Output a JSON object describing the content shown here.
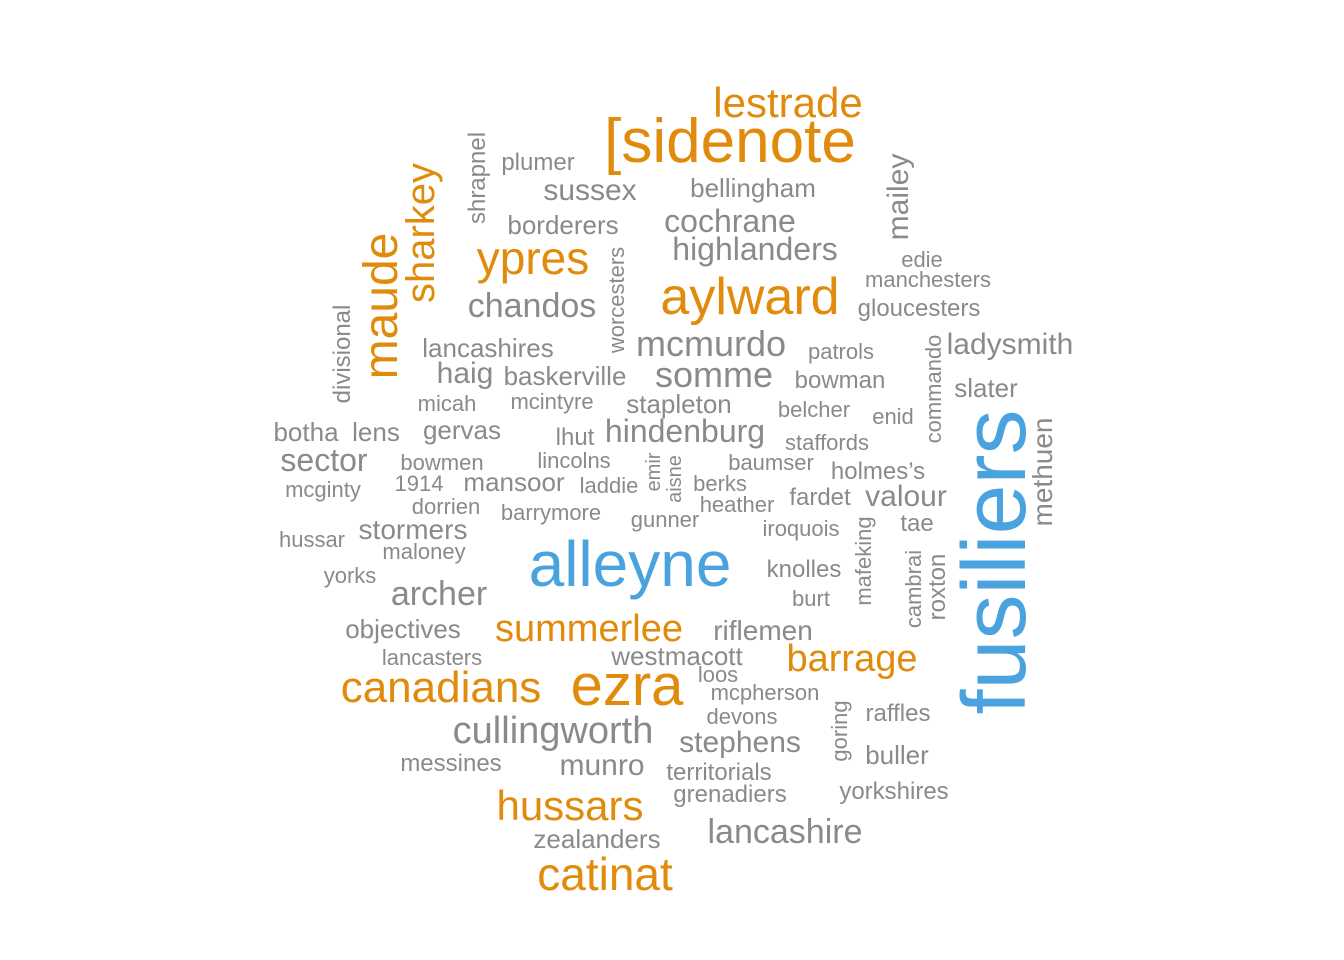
{
  "colors": {
    "high": "#4aa3df",
    "mid": "#e08b0b",
    "low": "#8a8a8a"
  },
  "words": [
    {
      "text": "lestrade",
      "tier": "mid"
    },
    {
      "text": "[sidenote",
      "tier": "mid"
    },
    {
      "text": "shrapnel",
      "tier": "low"
    },
    {
      "text": "plumer",
      "tier": "low"
    },
    {
      "text": "sussex",
      "tier": "low"
    },
    {
      "text": "bellingham",
      "tier": "low"
    },
    {
      "text": "mailey",
      "tier": "low"
    },
    {
      "text": "sharkey",
      "tier": "mid"
    },
    {
      "text": "borderers",
      "tier": "low"
    },
    {
      "text": "cochrane",
      "tier": "low"
    },
    {
      "text": "maude",
      "tier": "mid"
    },
    {
      "text": "ypres",
      "tier": "mid"
    },
    {
      "text": "worcesters",
      "tier": "low"
    },
    {
      "text": "highlanders",
      "tier": "low"
    },
    {
      "text": "edie",
      "tier": "low"
    },
    {
      "text": "manchesters",
      "tier": "low"
    },
    {
      "text": "aylward",
      "tier": "mid"
    },
    {
      "text": "chandos",
      "tier": "low"
    },
    {
      "text": "gloucesters",
      "tier": "low"
    },
    {
      "text": "divisional",
      "tier": "low"
    },
    {
      "text": "commando",
      "tier": "low"
    },
    {
      "text": "ladysmith",
      "tier": "low"
    },
    {
      "text": "lancashires",
      "tier": "low"
    },
    {
      "text": "mcmurdo",
      "tier": "low"
    },
    {
      "text": "patrols",
      "tier": "low"
    },
    {
      "text": "haig",
      "tier": "low"
    },
    {
      "text": "baskerville",
      "tier": "low"
    },
    {
      "text": "somme",
      "tier": "low"
    },
    {
      "text": "bowman",
      "tier": "low"
    },
    {
      "text": "slater",
      "tier": "low"
    },
    {
      "text": "micah",
      "tier": "low"
    },
    {
      "text": "mcintyre",
      "tier": "low"
    },
    {
      "text": "stapleton",
      "tier": "low"
    },
    {
      "text": "belcher",
      "tier": "low"
    },
    {
      "text": "enid",
      "tier": "low"
    },
    {
      "text": "methuen",
      "tier": "low"
    },
    {
      "text": "fusiliers",
      "tier": "high"
    },
    {
      "text": "botha",
      "tier": "low"
    },
    {
      "text": "lens",
      "tier": "low"
    },
    {
      "text": "gervas",
      "tier": "low"
    },
    {
      "text": "lhut",
      "tier": "low"
    },
    {
      "text": "hindenburg",
      "tier": "low"
    },
    {
      "text": "staffords",
      "tier": "low"
    },
    {
      "text": "sector",
      "tier": "low"
    },
    {
      "text": "bowmen",
      "tier": "low"
    },
    {
      "text": "lincolns",
      "tier": "low"
    },
    {
      "text": "emir",
      "tier": "low"
    },
    {
      "text": "aisne",
      "tier": "low"
    },
    {
      "text": "baumser",
      "tier": "low"
    },
    {
      "text": "holmes’s",
      "tier": "low"
    },
    {
      "text": "mcginty",
      "tier": "low"
    },
    {
      "text": "1914",
      "tier": "low"
    },
    {
      "text": "mansoor",
      "tier": "low"
    },
    {
      "text": "laddie",
      "tier": "low"
    },
    {
      "text": "berks",
      "tier": "low"
    },
    {
      "text": "fardet",
      "tier": "low"
    },
    {
      "text": "valour",
      "tier": "low"
    },
    {
      "text": "dorrien",
      "tier": "low"
    },
    {
      "text": "heather",
      "tier": "low"
    },
    {
      "text": "barrymore",
      "tier": "low"
    },
    {
      "text": "gunner",
      "tier": "low"
    },
    {
      "text": "iroquois",
      "tier": "low"
    },
    {
      "text": "tae",
      "tier": "low"
    },
    {
      "text": "hussar",
      "tier": "low"
    },
    {
      "text": "stormers",
      "tier": "low"
    },
    {
      "text": "mafeking",
      "tier": "low"
    },
    {
      "text": "maloney",
      "tier": "low"
    },
    {
      "text": "alleyne",
      "tier": "high"
    },
    {
      "text": "cambrai",
      "tier": "low"
    },
    {
      "text": "roxton",
      "tier": "low"
    },
    {
      "text": "yorks",
      "tier": "low"
    },
    {
      "text": "knolles",
      "tier": "low"
    },
    {
      "text": "archer",
      "tier": "low"
    },
    {
      "text": "burt",
      "tier": "low"
    },
    {
      "text": "objectives",
      "tier": "low"
    },
    {
      "text": "summerlee",
      "tier": "mid"
    },
    {
      "text": "riflemen",
      "tier": "low"
    },
    {
      "text": "lancasters",
      "tier": "low"
    },
    {
      "text": "westmacott",
      "tier": "low"
    },
    {
      "text": "barrage",
      "tier": "mid"
    },
    {
      "text": "loos",
      "tier": "low"
    },
    {
      "text": "canadians",
      "tier": "mid"
    },
    {
      "text": "ezra",
      "tier": "mid"
    },
    {
      "text": "mcpherson",
      "tier": "low"
    },
    {
      "text": "goring",
      "tier": "low"
    },
    {
      "text": "raffles",
      "tier": "low"
    },
    {
      "text": "devons",
      "tier": "low"
    },
    {
      "text": "cullingworth",
      "tier": "low"
    },
    {
      "text": "stephens",
      "tier": "low"
    },
    {
      "text": "buller",
      "tier": "low"
    },
    {
      "text": "messines",
      "tier": "low"
    },
    {
      "text": "munro",
      "tier": "low"
    },
    {
      "text": "territorials",
      "tier": "low"
    },
    {
      "text": "yorkshires",
      "tier": "low"
    },
    {
      "text": "grenadiers",
      "tier": "low"
    },
    {
      "text": "hussars",
      "tier": "mid"
    },
    {
      "text": "lancashire",
      "tier": "low"
    },
    {
      "text": "zealanders",
      "tier": "low"
    },
    {
      "text": "catinat",
      "tier": "mid"
    }
  ]
}
